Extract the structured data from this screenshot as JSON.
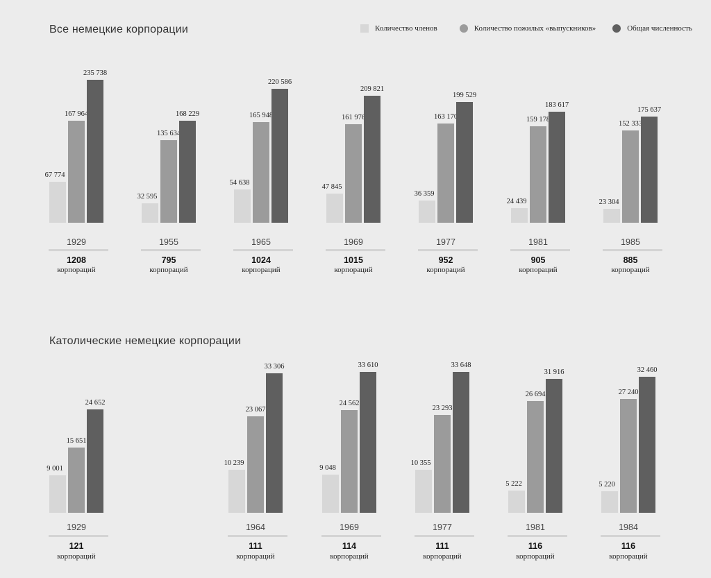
{
  "colors": {
    "members": "#d7d7d7",
    "alumni": "#9b9b9b",
    "total": "#5f5f5f",
    "background": "#ececec"
  },
  "legend": [
    {
      "label": "Количество членов",
      "shape": "square",
      "color": "#d7d7d7"
    },
    {
      "label": "Количество пожилых «выпускников»",
      "shape": "circle",
      "color": "#9b9b9b"
    },
    {
      "label": "Общая численность",
      "shape": "circle",
      "color": "#5f5f5f"
    }
  ],
  "count_unit": "корпораций",
  "chart_data": [
    {
      "type": "bar",
      "title": "Все немецкие корпорации",
      "categories": [
        "1929",
        "1955",
        "1965",
        "1969",
        "1977",
        "1981",
        "1985"
      ],
      "series": [
        {
          "name": "Количество членов",
          "values": [
            67774,
            32595,
            54638,
            47845,
            36359,
            24439,
            23304
          ],
          "labels": [
            "67 774",
            "32 595",
            "54 638",
            "47 845",
            "36 359",
            "24 439",
            "23 304"
          ]
        },
        {
          "name": "Количество пожилых «выпускников»",
          "values": [
            167964,
            135634,
            165948,
            161976,
            163170,
            159178,
            152333
          ],
          "labels": [
            "167 964",
            "135 634",
            "165 948",
            "161 976",
            "163 170",
            "159 178",
            "152 333"
          ]
        },
        {
          "name": "Общая численность",
          "values": [
            235738,
            168229,
            220586,
            209821,
            199529,
            183617,
            175637
          ],
          "labels": [
            "235 738",
            "168 229",
            "220 586",
            "209 821",
            "199 529",
            "183 617",
            "175 637"
          ]
        }
      ],
      "counts": [
        "1208",
        "795",
        "1024",
        "1015",
        "952",
        "905",
        "885"
      ],
      "ylim": [
        0,
        235738
      ],
      "grid": false,
      "legend_position": "top-right"
    },
    {
      "type": "bar",
      "title": "Католические немецкие корпорации",
      "categories": [
        "1929",
        "1964",
        "1969",
        "1977",
        "1981",
        "1984"
      ],
      "series": [
        {
          "name": "Количество членов",
          "values": [
            9001,
            10239,
            9048,
            10355,
            5222,
            5220
          ],
          "labels": [
            "9 001",
            "10 239",
            "9 048",
            "10 355",
            "5 222",
            "5 220"
          ]
        },
        {
          "name": "Количество пожилых «выпускников»",
          "values": [
            15651,
            23067,
            24562,
            23293,
            26694,
            27240
          ],
          "labels": [
            "15 651",
            "23 067",
            "24 562",
            "23 293",
            "26 694",
            "27 240"
          ]
        },
        {
          "name": "Общая численность",
          "values": [
            24652,
            33306,
            33610,
            33648,
            31916,
            32460
          ],
          "labels": [
            "24 652",
            "33 306",
            "33 610",
            "33 648",
            "31 916",
            "32 460"
          ]
        }
      ],
      "counts": [
        "121",
        "111",
        "114",
        "111",
        "116",
        "116"
      ],
      "ylim": [
        0,
        33648
      ],
      "grid": false
    }
  ]
}
